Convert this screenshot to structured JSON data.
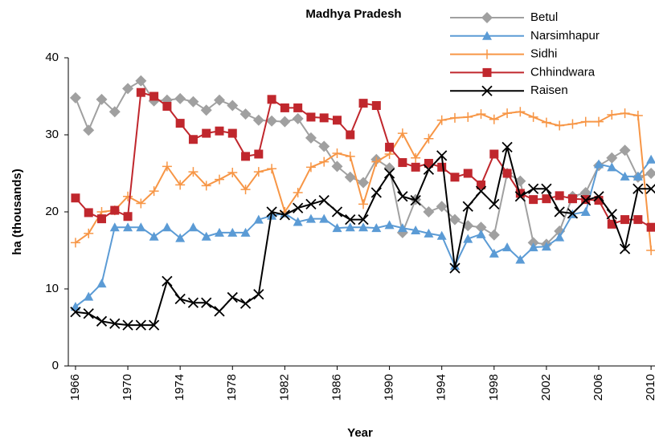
{
  "chart_data": {
    "type": "line",
    "title": "Madhya Pradesh",
    "xlabel": "Year",
    "ylabel": "ha (thousands)",
    "x": [
      1966,
      1967,
      1968,
      1969,
      1970,
      1971,
      1972,
      1973,
      1974,
      1975,
      1976,
      1977,
      1978,
      1979,
      1980,
      1981,
      1982,
      1983,
      1984,
      1985,
      1986,
      1987,
      1988,
      1989,
      1990,
      1991,
      1992,
      1993,
      1994,
      1995,
      1996,
      1997,
      1998,
      1999,
      2000,
      2001,
      2002,
      2003,
      2004,
      2005,
      2006,
      2007,
      2008,
      2009,
      2010
    ],
    "xlim": [
      1965.45,
      2010.3
    ],
    "xticks": [
      1966,
      1970,
      1974,
      1978,
      1982,
      1986,
      1990,
      1994,
      1998,
      2002,
      2006,
      2010
    ],
    "ylim": [
      0,
      40
    ],
    "yticks": [
      0,
      10,
      20,
      30,
      40
    ],
    "grid": false,
    "legend": "top-right",
    "series": [
      {
        "name": "Betul",
        "color": "#a0a0a0",
        "marker": "diamond",
        "values": [
          34.8,
          30.6,
          34.6,
          33,
          36,
          37,
          34.4,
          34.5,
          34.7,
          34.3,
          33.2,
          34.5,
          33.8,
          32.7,
          31.9,
          31.8,
          31.7,
          32.1,
          29.6,
          28.5,
          25.9,
          24.5,
          23.8,
          26.8,
          25.7,
          17.3,
          21.6,
          20,
          20.7,
          19,
          18.2,
          18,
          17,
          25,
          24,
          16,
          15.8,
          17.5,
          22,
          22.5,
          26,
          27,
          28,
          24.5,
          25
        ]
      },
      {
        "name": "Narsimhapur",
        "color": "#5b9bd5",
        "marker": "triangle",
        "values": [
          7.7,
          9,
          10.7,
          18,
          18,
          18,
          16.8,
          18,
          16.6,
          18,
          16.8,
          17.3,
          17.3,
          17.3,
          19,
          19.5,
          19.8,
          18.7,
          19.1,
          19.1,
          17.9,
          18,
          18,
          17.9,
          18.3,
          17.9,
          17.6,
          17.2,
          16.9,
          13,
          16.5,
          17.1,
          14.6,
          15.4,
          13.8,
          15.4,
          15.5,
          16.7,
          19.7,
          20,
          26.2,
          25.8,
          24.6,
          24.6,
          26.8
        ]
      },
      {
        "name": "Sidhi",
        "color": "#f79646",
        "marker": "plus",
        "values": [
          16,
          17.2,
          20,
          20.2,
          22,
          21.1,
          22.7,
          25.9,
          23.5,
          25.2,
          23.4,
          24.2,
          25.1,
          22.9,
          25.2,
          25.6,
          20,
          22.5,
          25.8,
          26.5,
          27.6,
          27.2,
          21,
          26.5,
          27.5,
          30.2,
          27,
          29.5,
          31.9,
          32.2,
          32.3,
          32.7,
          32,
          32.8,
          33,
          32.3,
          31.6,
          31.2,
          31.4,
          31.7,
          31.7,
          32.6,
          32.8,
          32.5,
          15
        ]
      },
      {
        "name": "Chhindwara",
        "color": "#c0272d",
        "marker": "square",
        "values": [
          21.8,
          19.9,
          19.1,
          20.2,
          19.4,
          35.5,
          35,
          33.7,
          31.5,
          29.4,
          30.2,
          30.5,
          30.2,
          27.2,
          27.5,
          34.6,
          33.5,
          33.5,
          32.3,
          32.2,
          31.9,
          30,
          34.1,
          33.8,
          28.4,
          26.4,
          25.8,
          26.3,
          25.8,
          24.5,
          25,
          23.5,
          27.5,
          25,
          22.4,
          21.6,
          21.7,
          22.1,
          21.7,
          21.6,
          21.5,
          18.4,
          19,
          19,
          18
        ]
      },
      {
        "name": "Raisen",
        "color": "#000000",
        "marker": "x",
        "values": [
          7,
          6.8,
          5.8,
          5.5,
          5.3,
          5.3,
          5.3,
          11,
          8.7,
          8.2,
          8.2,
          7.1,
          8.9,
          8.1,
          9.3,
          20,
          19.6,
          20.5,
          21,
          21.5,
          20,
          19,
          19,
          22.5,
          25,
          22,
          21.5,
          25.5,
          27.3,
          12.7,
          20.7,
          22.7,
          21,
          28.4,
          22,
          23,
          23,
          20,
          19.8,
          21.5,
          22,
          19.7,
          15.2,
          23,
          23
        ]
      }
    ]
  }
}
